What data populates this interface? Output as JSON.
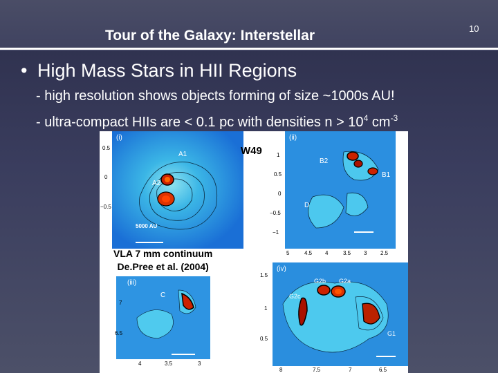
{
  "slide": {
    "title": "Tour of the Galaxy: Interstellar",
    "number": "10",
    "bullet_symbol": "•",
    "bullet_text": "High Mass Stars in HII Regions",
    "sub_lines": [
      "- high resolution shows objects forming of size ~1000s AU!",
      "- ultra-compact HIIs are <  0.1 pc with densities n > 10"
    ],
    "density_exp1": "4",
    "density_unit": " cm",
    "density_exp2": "-3"
  },
  "figure": {
    "source_label": "W49",
    "caption_line1": "VLA 7 mm continuum",
    "caption_line2": "De.Pree et al. (2004)",
    "panels": [
      {
        "tag": "(i)",
        "labels": [
          "A1",
          "A2"
        ],
        "scale_label": "5000 AU",
        "y_ticks": [
          "0.5",
          "0",
          "−0.5"
        ]
      },
      {
        "tag": "(ii)",
        "labels": [
          "B2",
          "B1",
          "D"
        ],
        "y_ticks": [
          "1",
          "0.5",
          "0",
          "−0.5",
          "−1"
        ],
        "x_ticks": [
          "5",
          "4.5",
          "4",
          "3.5",
          "3",
          "2.5"
        ]
      },
      {
        "tag": "(iii)",
        "labels": [
          "C"
        ],
        "y_ticks": [
          "7",
          "6.5"
        ],
        "x_ticks": [
          "4",
          "3.5",
          "3"
        ]
      },
      {
        "tag": "(iv)",
        "labels": [
          "G2b",
          "G2a",
          "G2c",
          "G1"
        ],
        "y_ticks": [
          "1.5",
          "1",
          "0.5"
        ],
        "x_ticks": [
          "8",
          "7.5",
          "7",
          "6.5"
        ]
      }
    ]
  },
  "colors": {
    "background_top": "#2c2e4a",
    "background_bottom": "#4c5068",
    "text": "#ffffff",
    "map_low": "#1a6fd6",
    "map_mid": "#36c0e8",
    "map_high": "#cc2200"
  }
}
